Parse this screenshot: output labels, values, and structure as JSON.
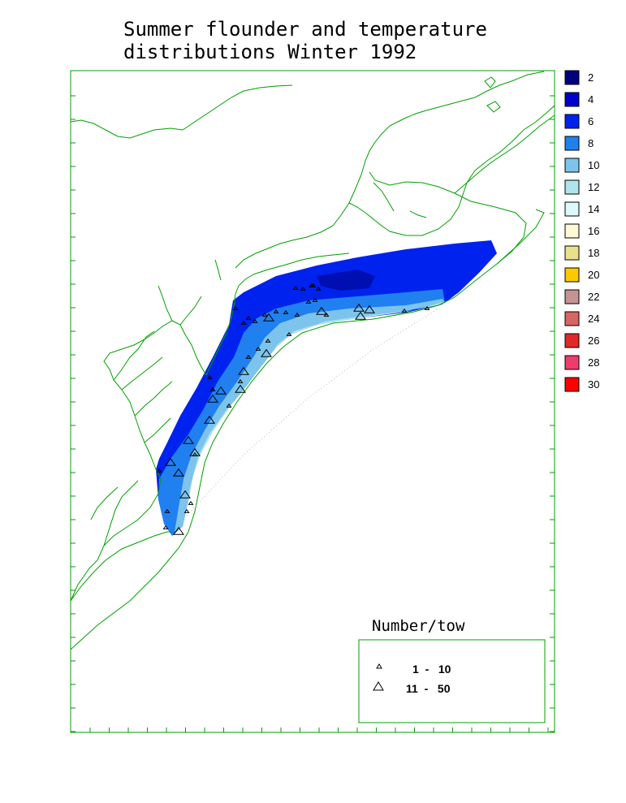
{
  "title_line1": "Summer flounder and temperature",
  "title_line2": "distributions Winter 1992",
  "legend": [
    {
      "label": "2",
      "color": "#00007f"
    },
    {
      "label": "4",
      "color": "#0000cc"
    },
    {
      "label": "6",
      "color": "#0022ee"
    },
    {
      "label": "8",
      "color": "#2080f0"
    },
    {
      "label": "10",
      "color": "#7cc4ec"
    },
    {
      "label": "12",
      "color": "#b0e4ec"
    },
    {
      "label": "14",
      "color": "#dcf8f8"
    },
    {
      "label": "16",
      "color": "#fcf8d4"
    },
    {
      "label": "18",
      "color": "#e8e08c"
    },
    {
      "label": "20",
      "color": "#fcc800"
    },
    {
      "label": "22",
      "color": "#c49494"
    },
    {
      "label": "24",
      "color": "#d86464"
    },
    {
      "label": "26",
      "color": "#e02828"
    },
    {
      "label": "28",
      "color": "#f03c6c"
    },
    {
      "label": "30",
      "color": "#ff0000"
    }
  ],
  "number_tow": {
    "title": "Number/tow",
    "classes": [
      {
        "label": "1  -   10",
        "symbol": "small-triangle"
      },
      {
        "label": "11  -   50",
        "symbol": "large-triangle"
      }
    ]
  },
  "colors": {
    "coastline": "#00a000",
    "frame": "#00a000"
  }
}
